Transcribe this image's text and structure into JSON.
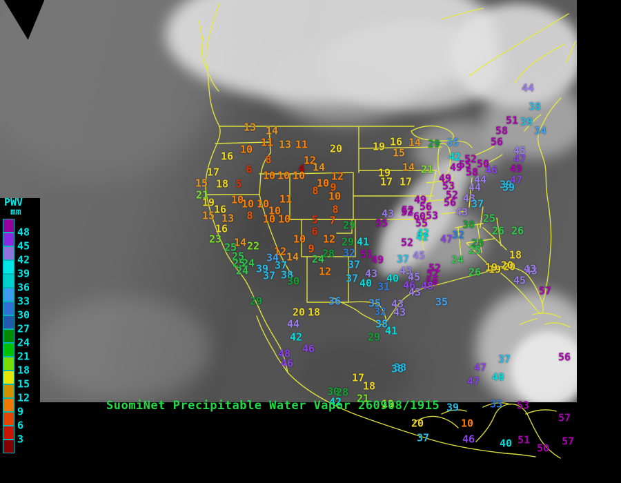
{
  "caption": {
    "text": "SuomiNet Precipitable Water Vapor 260908/1915",
    "color": "#1FDC46"
  },
  "legend": {
    "title": "PWV",
    "unit": "mm",
    "text_color": "#00E8E8",
    "labels": [
      48,
      45,
      42,
      39,
      36,
      33,
      30,
      27,
      24,
      21,
      18,
      15,
      12,
      9,
      6,
      3
    ],
    "swatches": [
      "#990099",
      "#8A2BE2",
      "#9370DB",
      "#00E6E6",
      "#00CFCF",
      "#3C9BEE",
      "#2E72D2",
      "#235AAD",
      "#008A00",
      "#00BE00",
      "#7ADC00",
      "#E6E600",
      "#D29200",
      "#F07800",
      "#E64400",
      "#C81400",
      "#820000"
    ]
  },
  "map": {
    "outline_color": "#E8E840",
    "background": "satellite-grayscale"
  },
  "value_color_buckets": [
    {
      "max": 4,
      "color": "#B40000"
    },
    {
      "max": 6,
      "color": "#E03000"
    },
    {
      "max": 9,
      "color": "#F05800"
    },
    {
      "max": 12,
      "color": "#FF8000"
    },
    {
      "max": 15,
      "color": "#E69420"
    },
    {
      "max": 20,
      "color": "#EED823"
    },
    {
      "max": 23,
      "color": "#7CE02A"
    },
    {
      "max": 26,
      "color": "#2EC84B"
    },
    {
      "max": 30,
      "color": "#12A035"
    },
    {
      "max": 33,
      "color": "#2C7BD9"
    },
    {
      "max": 36,
      "color": "#3FA0F0"
    },
    {
      "max": 39,
      "color": "#27BCE8"
    },
    {
      "max": 42,
      "color": "#00DCDC"
    },
    {
      "max": 45,
      "color": "#9B7BEA"
    },
    {
      "max": 48,
      "color": "#8A3FE8"
    },
    {
      "max": 99,
      "color": "#A800B0"
    }
  ],
  "stations": [
    [
      13,
      362,
      185
    ],
    [
      14,
      394,
      190
    ],
    [
      11,
      387,
      207
    ],
    [
      13,
      413,
      210
    ],
    [
      11,
      437,
      210
    ],
    [
      10,
      357,
      217
    ],
    [
      16,
      329,
      227
    ],
    [
      20,
      487,
      216
    ],
    [
      8,
      389,
      232
    ],
    [
      12,
      449,
      233
    ],
    [
      4,
      437,
      245
    ],
    [
      14,
      462,
      243
    ],
    [
      6,
      361,
      246
    ],
    [
      17,
      309,
      250
    ],
    [
      19,
      549,
      213
    ],
    [
      16,
      574,
      206
    ],
    [
      15,
      578,
      222
    ],
    [
      14,
      601,
      207
    ],
    [
      29,
      629,
      209
    ],
    [
      35,
      656,
      207
    ],
    [
      10,
      390,
      255
    ],
    [
      10,
      411,
      255
    ],
    [
      10,
      433,
      255
    ],
    [
      12,
      489,
      256
    ],
    [
      19,
      557,
      251
    ],
    [
      17,
      560,
      264
    ],
    [
      17,
      588,
      264
    ],
    [
      15,
      292,
      266
    ],
    [
      18,
      322,
      267
    ],
    [
      5,
      346,
      267
    ],
    [
      21,
      293,
      283
    ],
    [
      10,
      344,
      290
    ],
    [
      11,
      414,
      289
    ],
    [
      19,
      302,
      294
    ],
    [
      16,
      319,
      304
    ],
    [
      10,
      359,
      296
    ],
    [
      10,
      381,
      296
    ],
    [
      10,
      398,
      306
    ],
    [
      15,
      302,
      313
    ],
    [
      8,
      362,
      313
    ],
    [
      13,
      330,
      317
    ],
    [
      10,
      390,
      318
    ],
    [
      10,
      412,
      318
    ],
    [
      16,
      321,
      332
    ],
    [
      23,
      312,
      347
    ],
    [
      14,
      348,
      352
    ],
    [
      22,
      367,
      357
    ],
    [
      25,
      334,
      359
    ],
    [
      25,
      345,
      372
    ],
    [
      25,
      346,
      382
    ],
    [
      24,
      360,
      382
    ],
    [
      24,
      351,
      393
    ],
    [
      12,
      406,
      365
    ],
    [
      34,
      395,
      374
    ],
    [
      14,
      424,
      373
    ],
    [
      37,
      407,
      385
    ],
    [
      39,
      380,
      390
    ],
    [
      37,
      390,
      400
    ],
    [
      38,
      416,
      399
    ],
    [
      30,
      425,
      408
    ],
    [
      29,
      371,
      437
    ],
    [
      10,
      468,
      266
    ],
    [
      9,
      483,
      272
    ],
    [
      8,
      457,
      277
    ],
    [
      10,
      485,
      285
    ],
    [
      8,
      486,
      304
    ],
    [
      5,
      456,
      319
    ],
    [
      7,
      482,
      320
    ],
    [
      6,
      456,
      336
    ],
    [
      29,
      506,
      327
    ],
    [
      12,
      477,
      347
    ],
    [
      10,
      434,
      347
    ],
    [
      9,
      451,
      361
    ],
    [
      28,
      476,
      368
    ],
    [
      24,
      461,
      376
    ],
    [
      12,
      471,
      394
    ],
    [
      14,
      592,
      243
    ],
    [
      21,
      619,
      246
    ],
    [
      55,
      553,
      324
    ],
    [
      43,
      562,
      310
    ],
    [
      52,
      590,
      308
    ],
    [
      29,
      504,
      351
    ],
    [
      41,
      526,
      351
    ],
    [
      32,
      506,
      367
    ],
    [
      51,
      531,
      369
    ],
    [
      49,
      547,
      377
    ],
    [
      37,
      513,
      384
    ],
    [
      52,
      590,
      352
    ],
    [
      42,
      612,
      344
    ],
    [
      45,
      607,
      371
    ],
    [
      37,
      584,
      376
    ],
    [
      43,
      538,
      397
    ],
    [
      37,
      510,
      404
    ],
    [
      40,
      530,
      411
    ],
    [
      43,
      588,
      393
    ],
    [
      45,
      600,
      402
    ],
    [
      52,
      627,
      397
    ],
    [
      50,
      626,
      409
    ],
    [
      46,
      593,
      414
    ],
    [
      48,
      619,
      415
    ],
    [
      43,
      601,
      424
    ],
    [
      36,
      485,
      437
    ],
    [
      35,
      543,
      440
    ],
    [
      32,
      551,
      452
    ],
    [
      31,
      556,
      416
    ],
    [
      40,
      569,
      404
    ],
    [
      43,
      576,
      441
    ],
    [
      43,
      579,
      453
    ],
    [
      20,
      433,
      453
    ],
    [
      18,
      455,
      453
    ],
    [
      44,
      425,
      470
    ],
    [
      38,
      553,
      470
    ],
    [
      41,
      567,
      480
    ],
    [
      29,
      542,
      489
    ],
    [
      42,
      429,
      489
    ],
    [
      46,
      447,
      506
    ],
    [
      48,
      412,
      513
    ],
    [
      46,
      416,
      527
    ],
    [
      35,
      640,
      438
    ],
    [
      38,
      580,
      533
    ],
    [
      49,
      609,
      290
    ],
    [
      56,
      617,
      300
    ],
    [
      52,
      591,
      305
    ],
    [
      60,
      608,
      314
    ],
    [
      53,
      626,
      313
    ],
    [
      55,
      611,
      324
    ],
    [
      42,
      613,
      338
    ],
    [
      43,
      669,
      308
    ],
    [
      25,
      709,
      317
    ],
    [
      30,
      679,
      326
    ],
    [
      32,
      664,
      341
    ],
    [
      47,
      647,
      347
    ],
    [
      26,
      722,
      335
    ],
    [
      26,
      750,
      335
    ],
    [
      28,
      692,
      353
    ],
    [
      25,
      688,
      363
    ],
    [
      24,
      663,
      377
    ],
    [
      18,
      747,
      370
    ],
    [
      20,
      738,
      387
    ],
    [
      19,
      717,
      391
    ],
    [
      26,
      688,
      395
    ],
    [
      43,
      770,
      393
    ],
    [
      45,
      753,
      407
    ],
    [
      52,
      630,
      389
    ],
    [
      57,
      790,
      422
    ],
    [
      19,
      712,
      388
    ],
    [
      20,
      735,
      385
    ],
    [
      43,
      768,
      390
    ],
    [
      42,
      659,
      228
    ],
    [
      52,
      682,
      231
    ],
    [
      55,
      674,
      239
    ],
    [
      50,
      700,
      238
    ],
    [
      58,
      684,
      250
    ],
    [
      46,
      712,
      247
    ],
    [
      49,
      661,
      243
    ],
    [
      49,
      645,
      259
    ],
    [
      53,
      650,
      270
    ],
    [
      52,
      655,
      283
    ],
    [
      56,
      652,
      294
    ],
    [
      44,
      696,
      261
    ],
    [
      44,
      688,
      272
    ],
    [
      43,
      680,
      288
    ],
    [
      37,
      692,
      296
    ],
    [
      39,
      733,
      268
    ],
    [
      58,
      727,
      190
    ],
    [
      56,
      720,
      206
    ],
    [
      44,
      765,
      128
    ],
    [
      38,
      775,
      155
    ],
    [
      51,
      742,
      175
    ],
    [
      39,
      763,
      177
    ],
    [
      34,
      783,
      190
    ],
    [
      45,
      753,
      219
    ],
    [
      47,
      753,
      231
    ],
    [
      49,
      748,
      245
    ],
    [
      47,
      748,
      261
    ],
    [
      39,
      737,
      272
    ],
    [
      37,
      731,
      521
    ],
    [
      40,
      722,
      547
    ],
    [
      56,
      818,
      518
    ],
    [
      17,
      519,
      548
    ],
    [
      18,
      535,
      560
    ],
    [
      30,
      483,
      568
    ],
    [
      28,
      496,
      569
    ],
    [
      21,
      526,
      578
    ],
    [
      42,
      486,
      583
    ],
    [
      19,
      562,
      586
    ],
    [
      38,
      576,
      535
    ],
    [
      47,
      696,
      533
    ],
    [
      47,
      686,
      553
    ],
    [
      39,
      656,
      591
    ],
    [
      33,
      719,
      586
    ],
    [
      53,
      758,
      588
    ],
    [
      57,
      818,
      606
    ],
    [
      20,
      605,
      614
    ],
    [
      10,
      677,
      614
    ],
    [
      37,
      613,
      635
    ],
    [
      46,
      679,
      637
    ],
    [
      40,
      733,
      643
    ],
    [
      51,
      759,
      638
    ],
    [
      57,
      823,
      640
    ],
    [
      50,
      787,
      650
    ]
  ]
}
